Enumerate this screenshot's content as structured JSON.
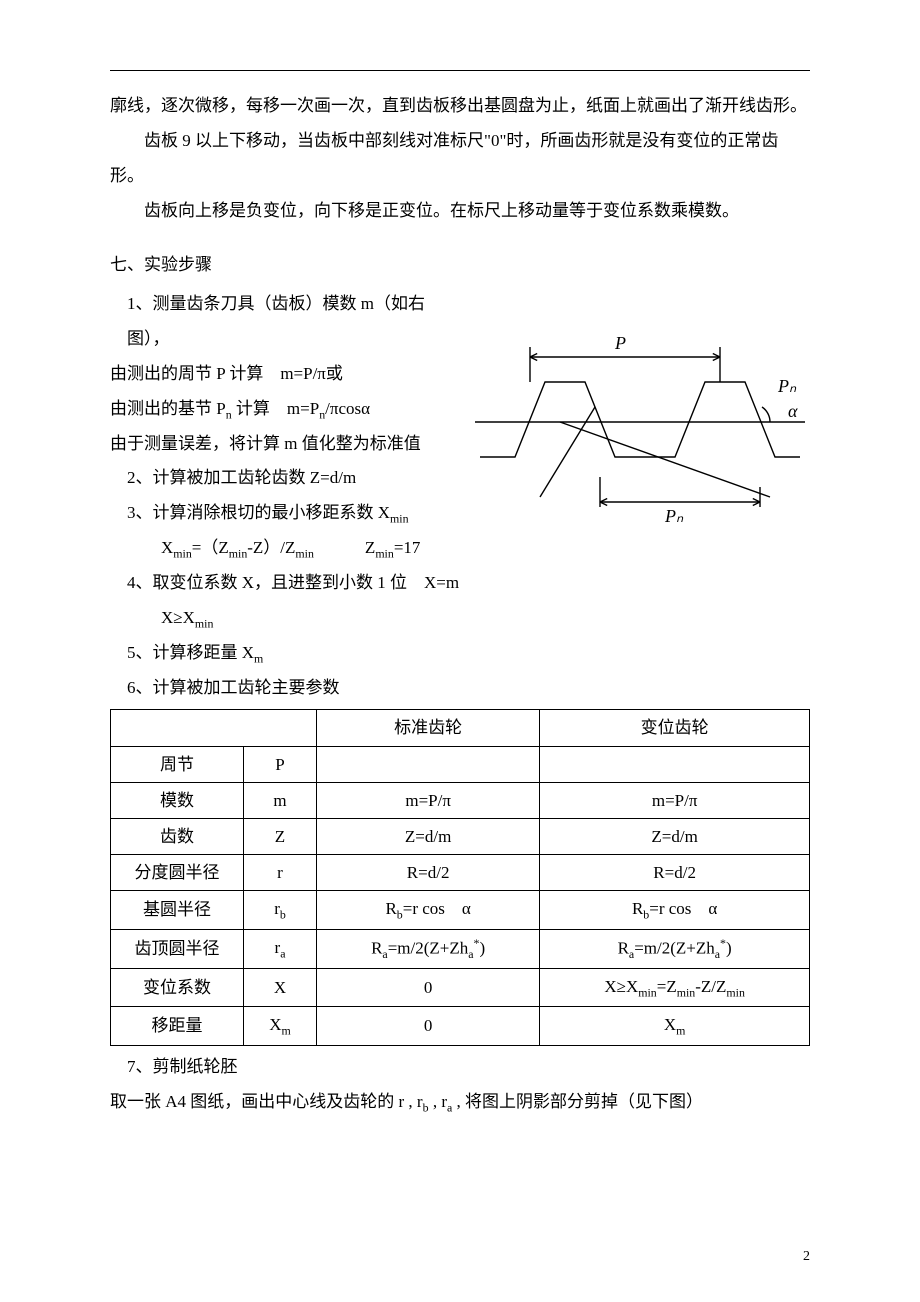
{
  "para1": "廓线，逐次微移，每移一次画一次，直到齿板移出基圆盘为止，纸面上就画出了渐开线齿形。",
  "para2": "齿板 9 以上下移动，当齿板中部刻线对准标尺\"0\"时，所画齿形就是没有变位的正常齿形。",
  "para3": "齿板向上移是负变位，向下移是正变位。在标尺上移动量等于变位系数乘模数。",
  "section7": "七、实验步骤",
  "step1": "1、测量齿条刀具（齿板）模数 m（如右图），",
  "step1a": "由测出的周节 P 计算 m=P/π或",
  "step1b_prefix": "由测出的基节 P",
  "step1b_sub": "n",
  "step1b_mid": " 计算 m=P",
  "step1b_sub2": "n",
  "step1b_suffix": "/πcosα",
  "step1c": "由于测量误差，将计算 m 值化整为标准值",
  "step2": "2、计算被加工齿轮齿数 Z=d/m",
  "step3_prefix": "3、计算消除根切的最小移距系数 X",
  "step3_sub": "min",
  "step3a_l": "X",
  "step3a_sub1": "min",
  "step3a_mid": "=（Z",
  "step3a_sub2": "min",
  "step3a_mid2": "-Z）/Z",
  "step3a_sub3": "min",
  "step3a_gap": "   Z",
  "step3a_sub4": "min",
  "step3a_end": "=17",
  "step4": "4、取变位系数 X，且进整到小数 1 位 X=m",
  "step4a_l": "X≥X",
  "step4a_sub": "min",
  "step5_prefix": "5、计算移距量 X",
  "step5_sub": "m",
  "step6": "6、计算被加工齿轮主要参数",
  "table": {
    "headers": [
      "",
      "标准齿轮",
      "变位齿轮"
    ],
    "rows": [
      {
        "name": "周节",
        "sym": "P",
        "std": "",
        "shift": ""
      },
      {
        "name": "模数",
        "sym": "m",
        "std": "m=P/π",
        "shift": "m=P/π"
      },
      {
        "name": "齿数",
        "sym": "Z",
        "std": "Z=d/m",
        "shift": "Z=d/m"
      },
      {
        "name": "分度圆半径",
        "sym": "r",
        "std": "R=d/2",
        "shift": "R=d/2"
      },
      {
        "name": "基圆半径",
        "sym_html": "r<sub>b</sub>",
        "std_html": "R<sub>b</sub>=r cos α",
        "shift_html": "R<sub>b</sub>=r cos α"
      },
      {
        "name": "齿顶圆半径",
        "sym_html": "r<sub>a</sub>",
        "std_html": "R<sub>a</sub>=m/2(Z+Zh<sub>a</sub><sup>*</sup>)",
        "shift_html": "R<sub>a</sub>=m/2(Z+Zh<sub>a</sub><sup>*</sup>)"
      },
      {
        "name": "变位系数",
        "sym": "X",
        "std": "0",
        "shift_html": "X≥X<sub>min</sub>=Z<sub>min</sub>-Z/Z<sub>min</sub>"
      },
      {
        "name": "移距量",
        "sym_html": "X<sub>m</sub>",
        "std": "0",
        "shift_html": "X<sub>m</sub>"
      }
    ]
  },
  "step7": "7、剪制纸轮胚",
  "step7a_prefix": "取一张 A4 图纸，画出中心线及齿轮的 r , r",
  "step7a_sub1": "b",
  "step7a_mid": " , r",
  "step7a_sub2": "a",
  "step7a_suffix": " , 将图上阴影部分剪掉（见下图）",
  "page_number": "2",
  "diagram": {
    "labels": {
      "P": "P",
      "Pn_top": "Pₙ",
      "Pn_bottom": "Pₙ",
      "alpha": "α"
    },
    "stroke": "#000000",
    "stroke_width": 1.4,
    "font": "italic 18px 'Times New Roman', serif"
  }
}
